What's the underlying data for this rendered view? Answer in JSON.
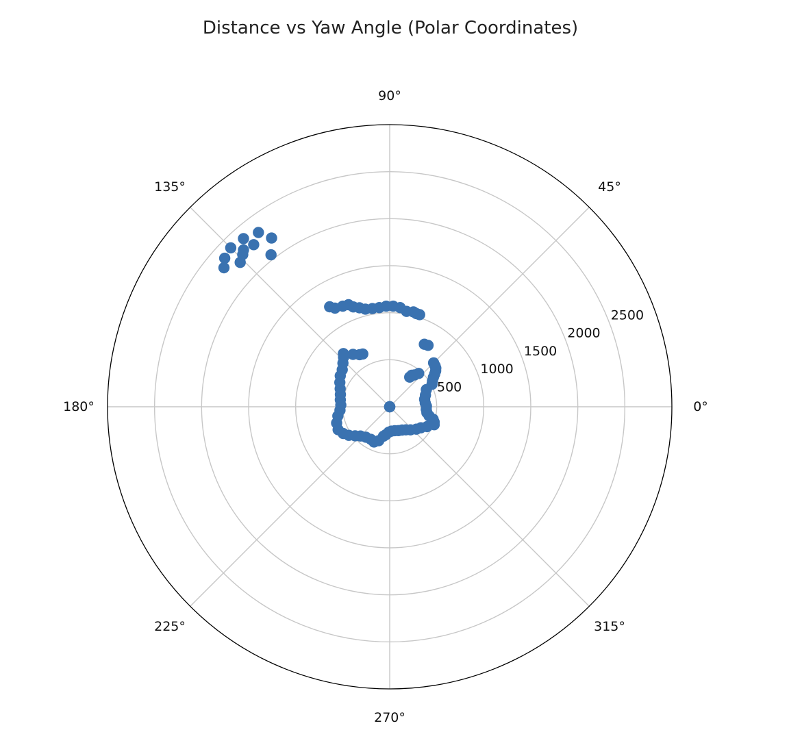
{
  "chart_data": {
    "type": "scatter",
    "projection": "polar",
    "title": "Distance vs Yaw Angle (Polar Coordinates)",
    "theta_unit": "degrees",
    "theta_ticks": [
      "0°",
      "45°",
      "90°",
      "135°",
      "180°",
      "225°",
      "270°",
      "315°"
    ],
    "r_ticks": [
      500,
      1000,
      1500,
      2000,
      2500
    ],
    "r_tick_labels": [
      "500",
      "1000",
      "1500",
      "2000",
      "2500"
    ],
    "r_range": [
      0,
      3000
    ],
    "grid": true,
    "marker_color": "#3a72b0",
    "series": [
      {
        "points": [
          {
            "theta": 0,
            "r": 0
          },
          {
            "theta": 90,
            "r": 0
          },
          {
            "theta": 180,
            "r": 0
          },
          {
            "theta": 270,
            "r": 0
          },
          {
            "theta": 28,
            "r": 510
          },
          {
            "theta": 31,
            "r": 530
          },
          {
            "theta": 34,
            "r": 560
          },
          {
            "theta": 36,
            "r": 590
          },
          {
            "theta": 38,
            "r": 620
          },
          {
            "theta": 40,
            "r": 640
          },
          {
            "theta": 42,
            "r": 650
          },
          {
            "theta": 45,
            "r": 660
          },
          {
            "theta": 52,
            "r": 430
          },
          {
            "theta": 55,
            "r": 410
          },
          {
            "theta": 58,
            "r": 770
          },
          {
            "theta": 61,
            "r": 760
          },
          {
            "theta": 49,
            "r": 470
          },
          {
            "theta": 56,
            "r": 380
          },
          {
            "theta": 25,
            "r": 430
          },
          {
            "theta": 18,
            "r": 400
          },
          {
            "theta": 12,
            "r": 380
          },
          {
            "theta": 6,
            "r": 380
          },
          {
            "theta": 1,
            "r": 390
          },
          {
            "theta": -4,
            "r": 390
          },
          {
            "theta": -9,
            "r": 400
          },
          {
            "theta": -13,
            "r": 430
          },
          {
            "theta": -16,
            "r": 480
          },
          {
            "theta": -19,
            "r": 500
          },
          {
            "theta": -22,
            "r": 510
          },
          {
            "theta": -28,
            "r": 450
          },
          {
            "theta": -34,
            "r": 400
          },
          {
            "theta": -40,
            "r": 370
          },
          {
            "theta": -48,
            "r": 330
          },
          {
            "theta": -55,
            "r": 300
          },
          {
            "theta": -62,
            "r": 280
          },
          {
            "theta": -70,
            "r": 270
          },
          {
            "theta": -78,
            "r": 260
          },
          {
            "theta": -86,
            "r": 260
          },
          {
            "theta": -92,
            "r": 270
          },
          {
            "theta": -98,
            "r": 300
          },
          {
            "theta": -102,
            "r": 320
          },
          {
            "theta": -108,
            "r": 380
          },
          {
            "theta": -114,
            "r": 410
          },
          {
            "theta": -120,
            "r": 400
          },
          {
            "theta": -128,
            "r": 410
          },
          {
            "theta": -135,
            "r": 440
          },
          {
            "theta": -140,
            "r": 480
          },
          {
            "theta": -145,
            "r": 530
          },
          {
            "theta": -150,
            "r": 570
          },
          {
            "theta": -156,
            "r": 600
          },
          {
            "theta": -163,
            "r": 590
          },
          {
            "theta": -170,
            "r": 560
          },
          {
            "theta": -176,
            "r": 530
          },
          {
            "theta": 178,
            "r": 520
          },
          {
            "theta": 172,
            "r": 530
          },
          {
            "theta": 166,
            "r": 540
          },
          {
            "theta": 160,
            "r": 560
          },
          {
            "theta": 154,
            "r": 590
          },
          {
            "theta": 148,
            "r": 620
          },
          {
            "theta": 142,
            "r": 640
          },
          {
            "theta": 137,
            "r": 680
          },
          {
            "theta": 133,
            "r": 720
          },
          {
            "theta": 131,
            "r": 750
          },
          {
            "theta": 125,
            "r": 680
          },
          {
            "theta": 120,
            "r": 640
          },
          {
            "theta": 117,
            "r": 630
          },
          {
            "theta": 104,
            "r": 1070
          },
          {
            "theta": 107,
            "r": 1100
          },
          {
            "theta": 110,
            "r": 1130
          },
          {
            "theta": 112,
            "r": 1170
          },
          {
            "theta": 115,
            "r": 1180
          },
          {
            "theta": 100,
            "r": 1060
          },
          {
            "theta": 96,
            "r": 1060
          },
          {
            "theta": 92,
            "r": 1070
          },
          {
            "theta": 88,
            "r": 1070
          },
          {
            "theta": 84,
            "r": 1060
          },
          {
            "theta": 80,
            "r": 1030
          },
          {
            "theta": 76,
            "r": 1040
          },
          {
            "theta": 74,
            "r": 1030
          },
          {
            "theta": 72,
            "r": 1030
          },
          {
            "theta": 119,
            "r": 1200
          },
          {
            "theta": 121,
            "r": 1240
          },
          {
            "theta": 134,
            "r": 2250
          },
          {
            "theta": 130,
            "r": 2250
          },
          {
            "theta": 127,
            "r": 2320
          },
          {
            "theta": 140,
            "r": 2300
          },
          {
            "theta": 136,
            "r": 2210
          },
          {
            "theta": 133,
            "r": 2280
          },
          {
            "theta": 131,
            "r": 2370
          },
          {
            "theta": 125,
            "r": 2190
          },
          {
            "theta": 128,
            "r": 2050
          },
          {
            "theta": 135,
            "r": 2390
          },
          {
            "theta": 138,
            "r": 2360
          }
        ]
      }
    ]
  }
}
